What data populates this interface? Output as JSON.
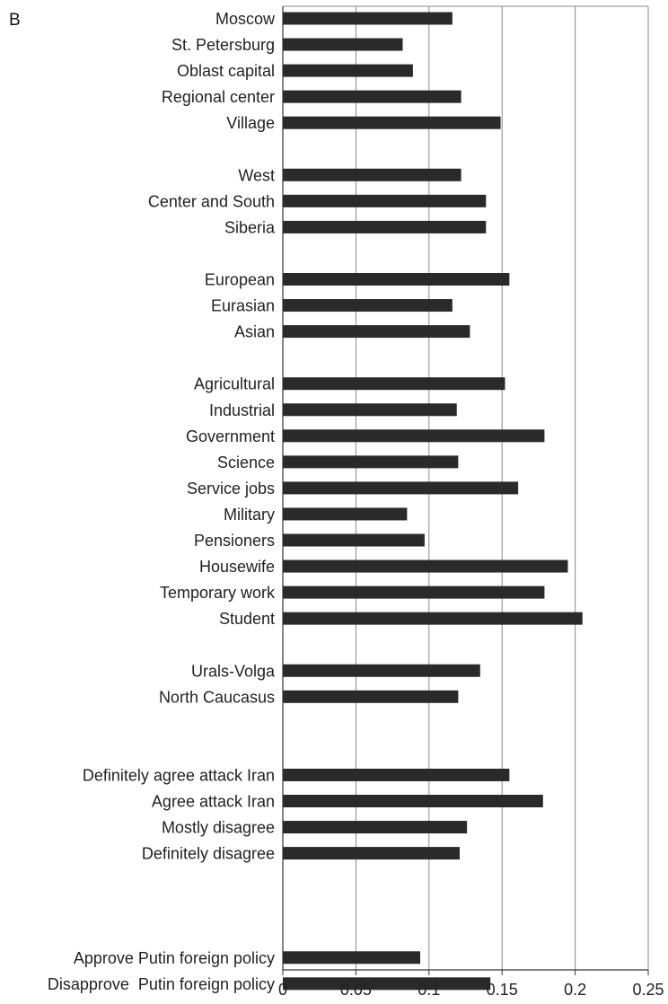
{
  "panel_label": "B",
  "chart_data": {
    "type": "bar",
    "orientation": "horizontal",
    "title": "",
    "xlabel": "",
    "ylabel": "",
    "xlim": [
      0,
      0.25
    ],
    "x_ticks": [
      "0",
      "0.05",
      "0.1",
      "0.15",
      "0.2",
      "0.25"
    ],
    "x_tick_values": [
      0,
      0.05,
      0.1,
      0.15,
      0.2,
      0.25
    ],
    "grid": "vertical",
    "legend": "none",
    "bar_color": "#2a2a2a",
    "gridline_color": "#888888",
    "categories": [
      "Moscow",
      "St. Petersburg",
      "Oblast capital",
      "Regional center",
      "Village",
      "West",
      "Center and South",
      "Siberia",
      "European",
      "Eurasian",
      "Asian",
      "Agricultural",
      "Industrial",
      "Government",
      "Science",
      "Service jobs",
      "Military",
      "Pensioners",
      "Housewife",
      "Temporary work",
      "Student",
      "Urals-Volga",
      "North Caucasus",
      "Definitely agree attack Iran",
      "Agree attack Iran",
      "Mostly disagree",
      "Definitely disagree",
      "Approve Putin foreign policy",
      "Disapprove  Putin foreign policy"
    ],
    "values": [
      0.116,
      0.082,
      0.089,
      0.122,
      0.149,
      0.122,
      0.139,
      0.139,
      0.155,
      0.116,
      0.128,
      0.152,
      0.119,
      0.179,
      0.12,
      0.161,
      0.085,
      0.097,
      0.195,
      0.179,
      0.205,
      0.135,
      0.12,
      0.155,
      0.178,
      0.126,
      0.121,
      0.094,
      0.142
    ],
    "slots": [
      0,
      1,
      2,
      3,
      4,
      6,
      7,
      8,
      10,
      11,
      12,
      14,
      15,
      16,
      17,
      18,
      19,
      20,
      21,
      22,
      23,
      25,
      26,
      29,
      30,
      31,
      32,
      36,
      37
    ]
  }
}
